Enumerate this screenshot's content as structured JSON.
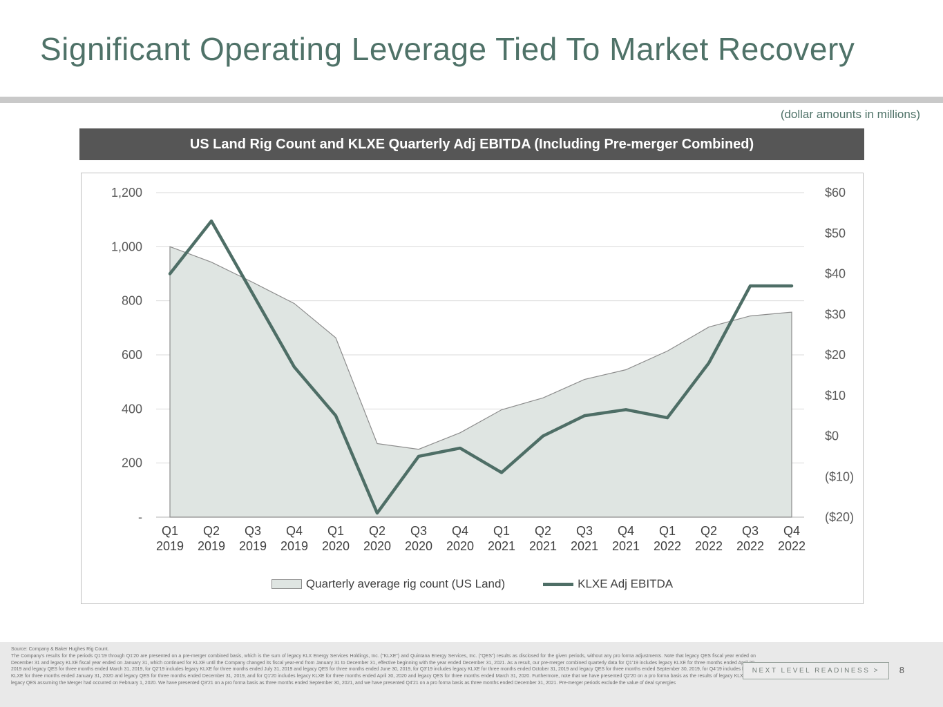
{
  "slide": {
    "title": "Significant Operating Leverage Tied To Market Recovery",
    "units_note": "(dollar amounts in millions)",
    "banner": "US Land Rig Count and KLXE Quarterly Adj EBITDA (Including Pre-merger Combined)",
    "page_number": "8",
    "footer_badge": "NEXT LEVEL READINESS >",
    "source_line": "Source: Company & Baker Hughes Rig Count.",
    "disclosure": "The Company's results for the periods Q1'19 through Q1'20 are presented on a pre-merger combined basis, which is the sum of legacy KLX Energy Services Holdings, Inc. (\"KLXE\") and Quintana Energy Services, Inc. (\"QES\") results as disclosed for the given periods, without any pro forma adjustments. Note that legacy QES fiscal year ended on December 31 and legacy KLXE fiscal year ended on January 31, which continued for KLXE until the Company changed its fiscal year-end from January 31 to December 31, effective beginning with the year ended December 31, 2021. As a result, our pre-merger combined quarterly data for Q1'19 includes legacy KLXE for three months ended April 30, 2019 and legacy QES for three months ended March 31, 2019, for Q2'19 includes legacy KLXE for three months ended July 31, 2019 and legacy QES for three months ended June 30, 2019, for Q3'19 includes legacy KLXE for three months ended October 31, 2019 and legacy QES for three months ended September 30, 2019, for Q4'19 includes legacy KLXE for three months ended January 31, 2020 and legacy QES for three months ended December 31, 2019, and for Q1'20 includes legacy KLXE for three months ended April 30, 2020 and legacy QES for three months ended March 31, 2020. Furthermore, note that we have presented Q2'20 on a pro forma basis as the results of legacy KLXE and legacy QES assuming the Merger had occurred on February 1, 2020. We have presented Q3'21 on a pro forma basis as three months ended September 30, 2021, and we have presented Q4'21 on a pro forma basis as three months ended December 31, 2021. Pre-merger periods exclude the value of deal synergies",
    "colors": {
      "accent_teal": "#4f7268",
      "banner_gray": "#565656",
      "footer_gray": "#e9e9e9"
    }
  },
  "chart_data": {
    "type": "area",
    "title": "US Land Rig Count and KLXE Quarterly Adj EBITDA (Including Pre-merger Combined)",
    "categories": [
      {
        "q": "Q1",
        "year": "2019"
      },
      {
        "q": "Q2",
        "year": "2019"
      },
      {
        "q": "Q3",
        "year": "2019"
      },
      {
        "q": "Q4",
        "year": "2019"
      },
      {
        "q": "Q1",
        "year": "2020"
      },
      {
        "q": "Q2",
        "year": "2020"
      },
      {
        "q": "Q3",
        "year": "2020"
      },
      {
        "q": "Q4",
        "year": "2020"
      },
      {
        "q": "Q1",
        "year": "2021"
      },
      {
        "q": "Q2",
        "year": "2021"
      },
      {
        "q": "Q3",
        "year": "2021"
      },
      {
        "q": "Q4",
        "year": "2021"
      },
      {
        "q": "Q1",
        "year": "2022"
      },
      {
        "q": "Q2",
        "year": "2022"
      },
      {
        "q": "Q3",
        "year": "2022"
      },
      {
        "q": "Q4",
        "year": "2022"
      }
    ],
    "series": [
      {
        "name": "Quarterly average rig count (US Land)",
        "type": "area",
        "axis": "left",
        "values": [
          1000,
          943,
          868,
          790,
          663,
          272,
          251,
          312,
          397,
          441,
          509,
          545,
          614,
          703,
          744,
          758
        ]
      },
      {
        "name": "KLXE Adj EBITDA",
        "type": "line",
        "axis": "right",
        "values": [
          40,
          53,
          35,
          17,
          5,
          -19,
          -5,
          -3,
          -9,
          0,
          5,
          6.5,
          4.5,
          18,
          37,
          37
        ]
      }
    ],
    "left_axis": {
      "min": 0,
      "max": 1200,
      "tick_values": [
        1200,
        1000,
        800,
        600,
        400,
        200,
        0
      ],
      "ticks": [
        "1,200",
        "1,000",
        "800",
        "600",
        "400",
        "200",
        "-"
      ]
    },
    "right_axis": {
      "min": -20,
      "max": 60,
      "tick_values": [
        60,
        50,
        40,
        30,
        20,
        10,
        0,
        -10,
        -20
      ],
      "ticks": [
        "$60",
        "$50",
        "$40",
        "$30",
        "$20",
        "$10",
        "$0",
        "($10)",
        "($20)"
      ]
    },
    "grid": "horizontal-left-ticks",
    "legend_position": "bottom-center",
    "legend": [
      {
        "label": "Quarterly average rig count (US Land)",
        "swatch": "area"
      },
      {
        "label": "KLXE Adj EBITDA",
        "swatch": "line"
      }
    ],
    "colors": {
      "area_fill": "#dfe5e2",
      "area_stroke": "#8c8c8c",
      "line": "#4e6e66"
    }
  }
}
